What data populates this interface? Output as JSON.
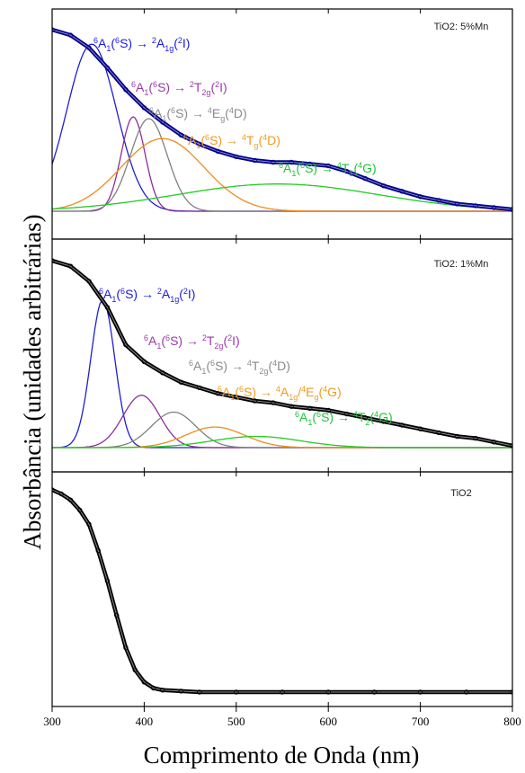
{
  "chart_data": {
    "type": "line",
    "xlabel": "Comprimento de Onda (nm)",
    "ylabel": "Absorbância (unidades arbitrárias)",
    "xlim": [
      300,
      800
    ],
    "xticks": [
      300,
      400,
      500,
      600,
      700,
      800
    ],
    "panels": [
      {
        "title": "TiO2: 5%Mn",
        "series": [
          {
            "color": "#00008b",
            "kind": "spectrum",
            "x": [
              300,
              320,
              340,
              360,
              380,
              400,
              420,
              440,
              460,
              480,
              500,
              520,
              540,
              560,
              580,
              600,
              620,
              640,
              660,
              680,
              700,
              720,
              740,
              760,
              780,
              800
            ],
            "y": [
              1.0,
              0.97,
              0.9,
              0.79,
              0.67,
              0.57,
              0.49,
              0.42,
              0.37,
              0.33,
              0.3,
              0.28,
              0.27,
              0.27,
              0.26,
              0.25,
              0.22,
              0.18,
              0.14,
              0.11,
              0.08,
              0.06,
              0.04,
              0.03,
              0.02,
              0.01
            ]
          },
          {
            "color": "#1f1fd0",
            "kind": "gaussian",
            "center": 343,
            "height": 0.92,
            "width": 27
          },
          {
            "color": "#8b2f9b",
            "kind": "gaussian",
            "center": 388,
            "height": 0.52,
            "width": 13
          },
          {
            "color": "#808080",
            "kind": "gaussian",
            "center": 405,
            "height": 0.51,
            "width": 20
          },
          {
            "color": "#f08c1a",
            "kind": "gaussian",
            "center": 420,
            "height": 0.4,
            "width": 45
          },
          {
            "color": "#22cc22",
            "kind": "gaussian",
            "center": 545,
            "height": 0.15,
            "width": 110
          }
        ],
        "annotations": [
          {
            "base": "6A1(6S) → 2A1g(2I)",
            "color": "#1a1ae6",
            "parts": [
              [
                "6",
                "sup"
              ],
              [
                "A",
                ""
              ],
              [
                "1",
                "sub"
              ],
              [
                "(",
                ""
              ],
              [
                "6",
                "sup"
              ],
              [
                "S) → ",
                ""
              ],
              [
                "2",
                "sup"
              ],
              [
                "A",
                ""
              ],
              [
                "1g",
                "sub"
              ],
              [
                "(",
                ""
              ],
              [
                "2",
                "sup"
              ],
              [
                "I)",
                ""
              ]
            ]
          },
          {
            "base": "6A1(6S) → 2T2g(2I)",
            "color": "#9a3aa8",
            "parts": [
              [
                "6",
                "sup"
              ],
              [
                "A",
                ""
              ],
              [
                "1",
                "sub"
              ],
              [
                "(",
                ""
              ],
              [
                "6",
                "sup"
              ],
              [
                "S) → ",
                ""
              ],
              [
                "2",
                "sup"
              ],
              [
                "T",
                ""
              ],
              [
                "2g",
                "sub"
              ],
              [
                "(",
                ""
              ],
              [
                "2",
                "sup"
              ],
              [
                "I)",
                ""
              ]
            ]
          },
          {
            "base": "6A1(6S) → 4Eg(4D)",
            "color": "#8a8a8a",
            "parts": [
              [
                "6",
                "sup"
              ],
              [
                "A",
                ""
              ],
              [
                "1",
                "sub"
              ],
              [
                "(",
                ""
              ],
              [
                "6",
                "sup"
              ],
              [
                "S) → ",
                ""
              ],
              [
                "4",
                "sup"
              ],
              [
                "E",
                ""
              ],
              [
                "g",
                "sub"
              ],
              [
                "(",
                ""
              ],
              [
                "4",
                "sup"
              ],
              [
                "D)",
                ""
              ]
            ]
          },
          {
            "base": "6A1(6S) → 4Tg(4D)",
            "color": "#f09a20",
            "parts": [
              [
                "6",
                "sup"
              ],
              [
                "A",
                ""
              ],
              [
                "1",
                "sub"
              ],
              [
                "(",
                ""
              ],
              [
                "6",
                "sup"
              ],
              [
                "S) → ",
                ""
              ],
              [
                "4",
                "sup"
              ],
              [
                "T",
                ""
              ],
              [
                "g",
                "sub"
              ],
              [
                "(",
                ""
              ],
              [
                "4",
                "sup"
              ],
              [
                "D)",
                ""
              ]
            ]
          },
          {
            "base": "6A1(6S) → 4T1(4G)",
            "color": "#22c23a",
            "parts": [
              [
                "6",
                "sup"
              ],
              [
                "A",
                ""
              ],
              [
                "1",
                "sub"
              ],
              [
                "(",
                ""
              ],
              [
                "6",
                "sup"
              ],
              [
                "S) → ",
                ""
              ],
              [
                "4",
                "sup"
              ],
              [
                "T",
                ""
              ],
              [
                "1",
                "sub"
              ],
              [
                "(",
                ""
              ],
              [
                "4",
                "sup"
              ],
              [
                "G)",
                ""
              ]
            ]
          }
        ]
      },
      {
        "title": "TiO2: 1%Mn",
        "series": [
          {
            "color": "#000000",
            "kind": "spectrum",
            "x": [
              300,
              320,
              340,
              360,
              380,
              400,
              420,
              440,
              460,
              480,
              500,
              520,
              540,
              560,
              580,
              600,
              620,
              640,
              660,
              680,
              700,
              720,
              740,
              760,
              780,
              800
            ],
            "y": [
              1.0,
              0.97,
              0.89,
              0.75,
              0.55,
              0.46,
              0.4,
              0.35,
              0.32,
              0.29,
              0.27,
              0.25,
              0.24,
              0.22,
              0.21,
              0.2,
              0.18,
              0.16,
              0.14,
              0.12,
              0.1,
              0.08,
              0.06,
              0.05,
              0.03,
              0.01
            ]
          },
          {
            "color": "#1f1fd0",
            "kind": "gaussian",
            "center": 355,
            "height": 0.79,
            "width": 13
          },
          {
            "color": "#8b2f9b",
            "kind": "gaussian",
            "center": 397,
            "height": 0.28,
            "width": 20
          },
          {
            "color": "#808080",
            "kind": "gaussian",
            "center": 432,
            "height": 0.19,
            "width": 24
          },
          {
            "color": "#f08c1a",
            "kind": "gaussian",
            "center": 477,
            "height": 0.11,
            "width": 32
          },
          {
            "color": "#22cc22",
            "kind": "gaussian",
            "center": 522,
            "height": 0.06,
            "width": 48
          }
        ],
        "annotations": [
          {
            "base": "6A1(6S) → 2A1g(2I)",
            "color": "#1a1ae6",
            "parts": [
              [
                "6",
                "sup"
              ],
              [
                "A",
                ""
              ],
              [
                "1",
                "sub"
              ],
              [
                "(",
                ""
              ],
              [
                "6",
                "sup"
              ],
              [
                "S) → ",
                ""
              ],
              [
                "2",
                "sup"
              ],
              [
                "A",
                ""
              ],
              [
                "1g",
                "sub"
              ],
              [
                "(",
                ""
              ],
              [
                "2",
                "sup"
              ],
              [
                "I)",
                ""
              ]
            ]
          },
          {
            "base": "6A1(6S) → 2T2g(2I)",
            "color": "#9a3aa8",
            "parts": [
              [
                "6",
                "sup"
              ],
              [
                "A",
                ""
              ],
              [
                "1",
                "sub"
              ],
              [
                "(",
                ""
              ],
              [
                "6",
                "sup"
              ],
              [
                "S) → ",
                ""
              ],
              [
                "2",
                "sup"
              ],
              [
                "T",
                ""
              ],
              [
                "2g",
                "sub"
              ],
              [
                "(",
                ""
              ],
              [
                "2",
                "sup"
              ],
              [
                "I)",
                ""
              ]
            ]
          },
          {
            "base": "6A1(6S) → 4T2g(4D)",
            "color": "#8a8a8a",
            "parts": [
              [
                "6",
                "sup"
              ],
              [
                "A",
                ""
              ],
              [
                "1",
                "sub"
              ],
              [
                "(",
                ""
              ],
              [
                "6",
                "sup"
              ],
              [
                "S) → ",
                ""
              ],
              [
                "4",
                "sup"
              ],
              [
                "T",
                ""
              ],
              [
                "2g",
                "sub"
              ],
              [
                "(",
                ""
              ],
              [
                "4",
                "sup"
              ],
              [
                "D)",
                ""
              ]
            ]
          },
          {
            "base": "6A1(6S) → 4A1g/4Eg(4G)",
            "color": "#f09a20",
            "parts": [
              [
                "6",
                "sup"
              ],
              [
                "A",
                ""
              ],
              [
                "1",
                "sub"
              ],
              [
                "(",
                ""
              ],
              [
                "6",
                "sup"
              ],
              [
                "S) → ",
                ""
              ],
              [
                "4",
                "sup"
              ],
              [
                "A",
                ""
              ],
              [
                "1g",
                "sub"
              ],
              [
                "/",
                ""
              ],
              [
                "4",
                "sup"
              ],
              [
                "E",
                ""
              ],
              [
                "g",
                "sub"
              ],
              [
                "(",
                ""
              ],
              [
                "4",
                "sup"
              ],
              [
                "G)",
                ""
              ]
            ]
          },
          {
            "base": "6A1(6S) → 4T2(4G)",
            "color": "#22c23a",
            "parts": [
              [
                "6",
                "sup"
              ],
              [
                "A",
                ""
              ],
              [
                "1",
                "sub"
              ],
              [
                "(",
                ""
              ],
              [
                "6",
                "sup"
              ],
              [
                "S) → ",
                ""
              ],
              [
                "4",
                "sup"
              ],
              [
                "T",
                ""
              ],
              [
                "2",
                "sub"
              ],
              [
                "(",
                ""
              ],
              [
                "4",
                "sup"
              ],
              [
                "G)",
                ""
              ]
            ]
          }
        ]
      },
      {
        "title": "TiO2",
        "series": [
          {
            "color": "#000000",
            "kind": "spectrum",
            "x": [
              300,
              310,
              320,
              330,
              340,
              350,
              360,
              370,
              380,
              390,
              400,
              410,
              420,
              440,
              460,
              500,
              550,
              600,
              650,
              700,
              750,
              800
            ],
            "y": [
              1.0,
              0.98,
              0.95,
              0.9,
              0.83,
              0.7,
              0.55,
              0.38,
              0.22,
              0.11,
              0.05,
              0.02,
              0.01,
              0.005,
              0.0,
              0.0,
              0.0,
              0.0,
              0.0,
              0.0,
              0.0,
              0.0
            ]
          }
        ],
        "annotations": []
      }
    ]
  }
}
